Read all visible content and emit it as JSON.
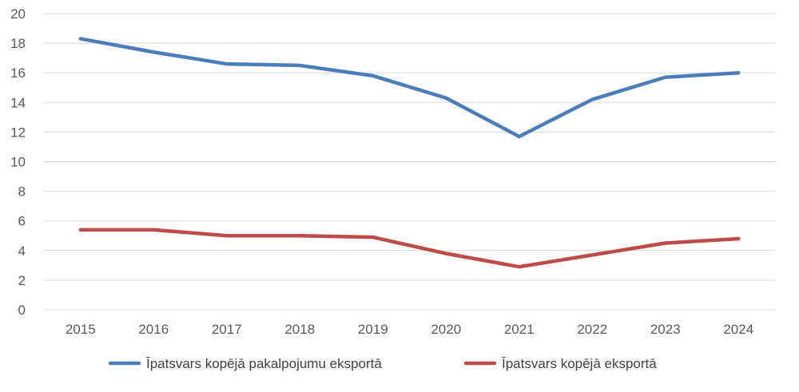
{
  "chart_data": {
    "type": "line",
    "title": "",
    "xlabel": "",
    "ylabel": "",
    "categories": [
      "2015",
      "2016",
      "2017",
      "2018",
      "2019",
      "2020",
      "2021",
      "2022",
      "2023",
      "2024"
    ],
    "ylim": [
      0,
      20
    ],
    "yticks": [
      0,
      2,
      4,
      6,
      8,
      10,
      12,
      14,
      16,
      18,
      20
    ],
    "grid": true,
    "legend_position": "bottom",
    "series": [
      {
        "name": "Īpatsvars kopējā pakalpojumu eksportā",
        "color": "#4a7ebb",
        "values": [
          18.3,
          17.4,
          16.6,
          16.5,
          15.8,
          14.3,
          11.7,
          14.2,
          15.7,
          16.0
        ]
      },
      {
        "name": "Īpatsvars kopējā eksportā",
        "color": "#be4b48",
        "values": [
          5.4,
          5.4,
          5.0,
          5.0,
          4.9,
          3.8,
          2.9,
          3.7,
          4.5,
          4.8
        ]
      }
    ]
  }
}
